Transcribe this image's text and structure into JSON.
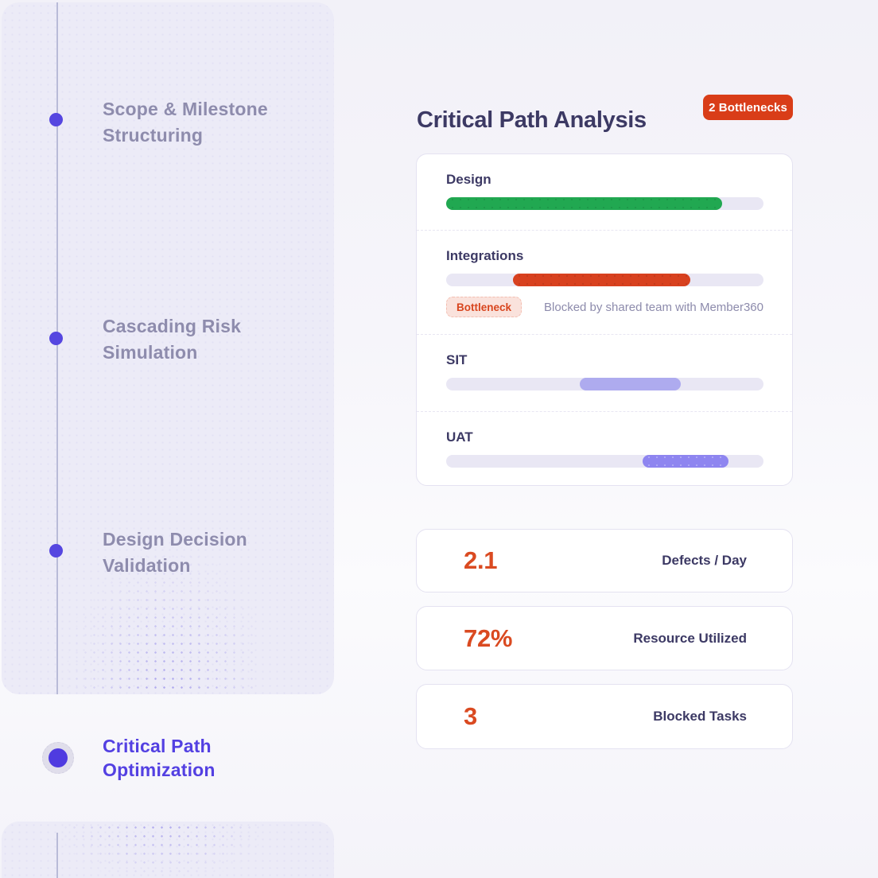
{
  "colors": {
    "dot": "#5546E0",
    "active": "#4F3BE0",
    "text_muted": "#8E8CAD",
    "text_active": "#5340E2",
    "navy": "#3C3964",
    "badge": "#D93D18",
    "value": "#DA4A21",
    "track": "#E9E7F4",
    "chip_bg": "#FAE2DC",
    "chip_text": "#D8451E",
    "note": "#8D8BAC",
    "border": "#E4E2F1"
  },
  "sidebar": {
    "items": [
      {
        "label": "Scope & Milestone Structuring",
        "active": false
      },
      {
        "label": "Cascading Risk Simulation",
        "active": false
      },
      {
        "label": "Design Decision Validation",
        "active": false
      },
      {
        "label": "Critical Path Optimization",
        "active": true
      }
    ]
  },
  "header": {
    "title": "Critical Path Analysis",
    "badge": "2 Bottlenecks"
  },
  "tasks": [
    {
      "name": "Design",
      "start_pct": 0,
      "end_pct": 87,
      "color": "#21A851",
      "bottleneck": false
    },
    {
      "name": "Integrations",
      "start_pct": 21,
      "end_pct": 77,
      "color": "#D8411F",
      "bottleneck": true,
      "tag": "Bottleneck",
      "note": "Blocked by shared team with Member360"
    },
    {
      "name": "SIT",
      "start_pct": 42,
      "end_pct": 74,
      "color": "#AEABEF",
      "bottleneck": false
    },
    {
      "name": "UAT",
      "start_pct": 62,
      "end_pct": 89,
      "color": "#8E85F0",
      "bottleneck": false
    }
  ],
  "stats": [
    {
      "value": "2.1",
      "label": "Defects / Day"
    },
    {
      "value": "72%",
      "label": "Resource Utilized"
    },
    {
      "value": "3",
      "label": "Blocked Tasks"
    }
  ]
}
